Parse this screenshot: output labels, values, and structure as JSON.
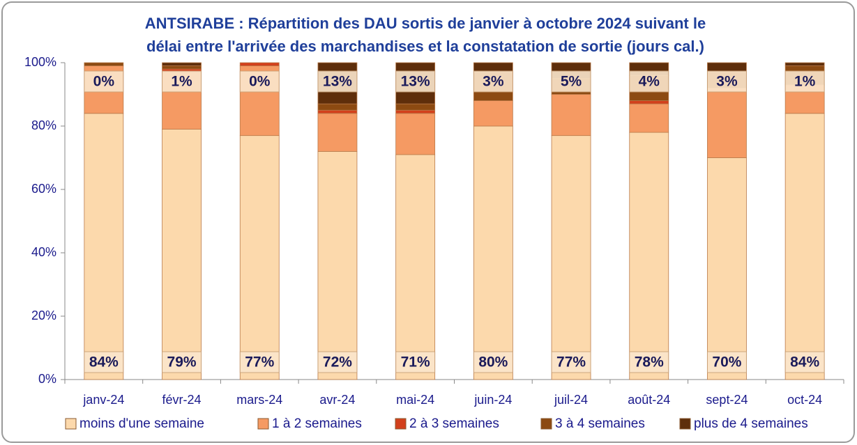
{
  "chart_data": {
    "type": "stacked_bar_100",
    "title": [
      "ANTSIRABE : Répartition des DAU sortis de janvier à octobre 2024 suivant le",
      "délai entre l'arrivée des marchandises et la constatation de sortie (jours cal.)"
    ],
    "categories": [
      "janv-24",
      "févr-24",
      "mars-24",
      "avr-24",
      "mai-24",
      "juin-24",
      "juil-24",
      "août-24",
      "sept-24",
      "oct-24"
    ],
    "series": [
      {
        "name": "moins d'une semaine",
        "color": "#fcd9ac",
        "values": [
          84,
          79,
          77,
          72,
          71,
          80,
          77,
          78,
          70,
          84
        ],
        "value_labels": [
          "84%",
          "79%",
          "77%",
          "72%",
          "71%",
          "80%",
          "77%",
          "78%",
          "70%",
          "84%"
        ]
      },
      {
        "name": "1 à 2 semaines",
        "color": "#f59a63",
        "values": [
          15,
          18,
          22,
          12,
          13,
          8,
          13,
          9,
          22,
          9
        ]
      },
      {
        "name": "2 à 3 semaines",
        "color": "#d2401c",
        "values": [
          0,
          1,
          1,
          1,
          1,
          0,
          0,
          1,
          0,
          0
        ]
      },
      {
        "name": "3 à 4 semaines",
        "color": "#8c4a12",
        "values": [
          1,
          1,
          0,
          2,
          2,
          9,
          5,
          8,
          5,
          6
        ]
      },
      {
        "name": "plus de 4 semaines",
        "color": "#5e2e0b",
        "values": [
          0,
          1,
          0,
          13,
          13,
          3,
          5,
          4,
          3,
          1
        ],
        "value_labels": [
          "0%",
          "1%",
          "0%",
          "13%",
          "13%",
          "3%",
          "5%",
          "4%",
          "3%",
          "1%"
        ]
      }
    ],
    "ylim": [
      0,
      100
    ],
    "yticks": [
      {
        "value": 0,
        "label": "0%"
      },
      {
        "value": 20,
        "label": "20%"
      },
      {
        "value": 40,
        "label": "40%"
      },
      {
        "value": 60,
        "label": "60%"
      },
      {
        "value": 80,
        "label": "80%"
      },
      {
        "value": 100,
        "label": "100%"
      }
    ],
    "legend": "bottom"
  }
}
